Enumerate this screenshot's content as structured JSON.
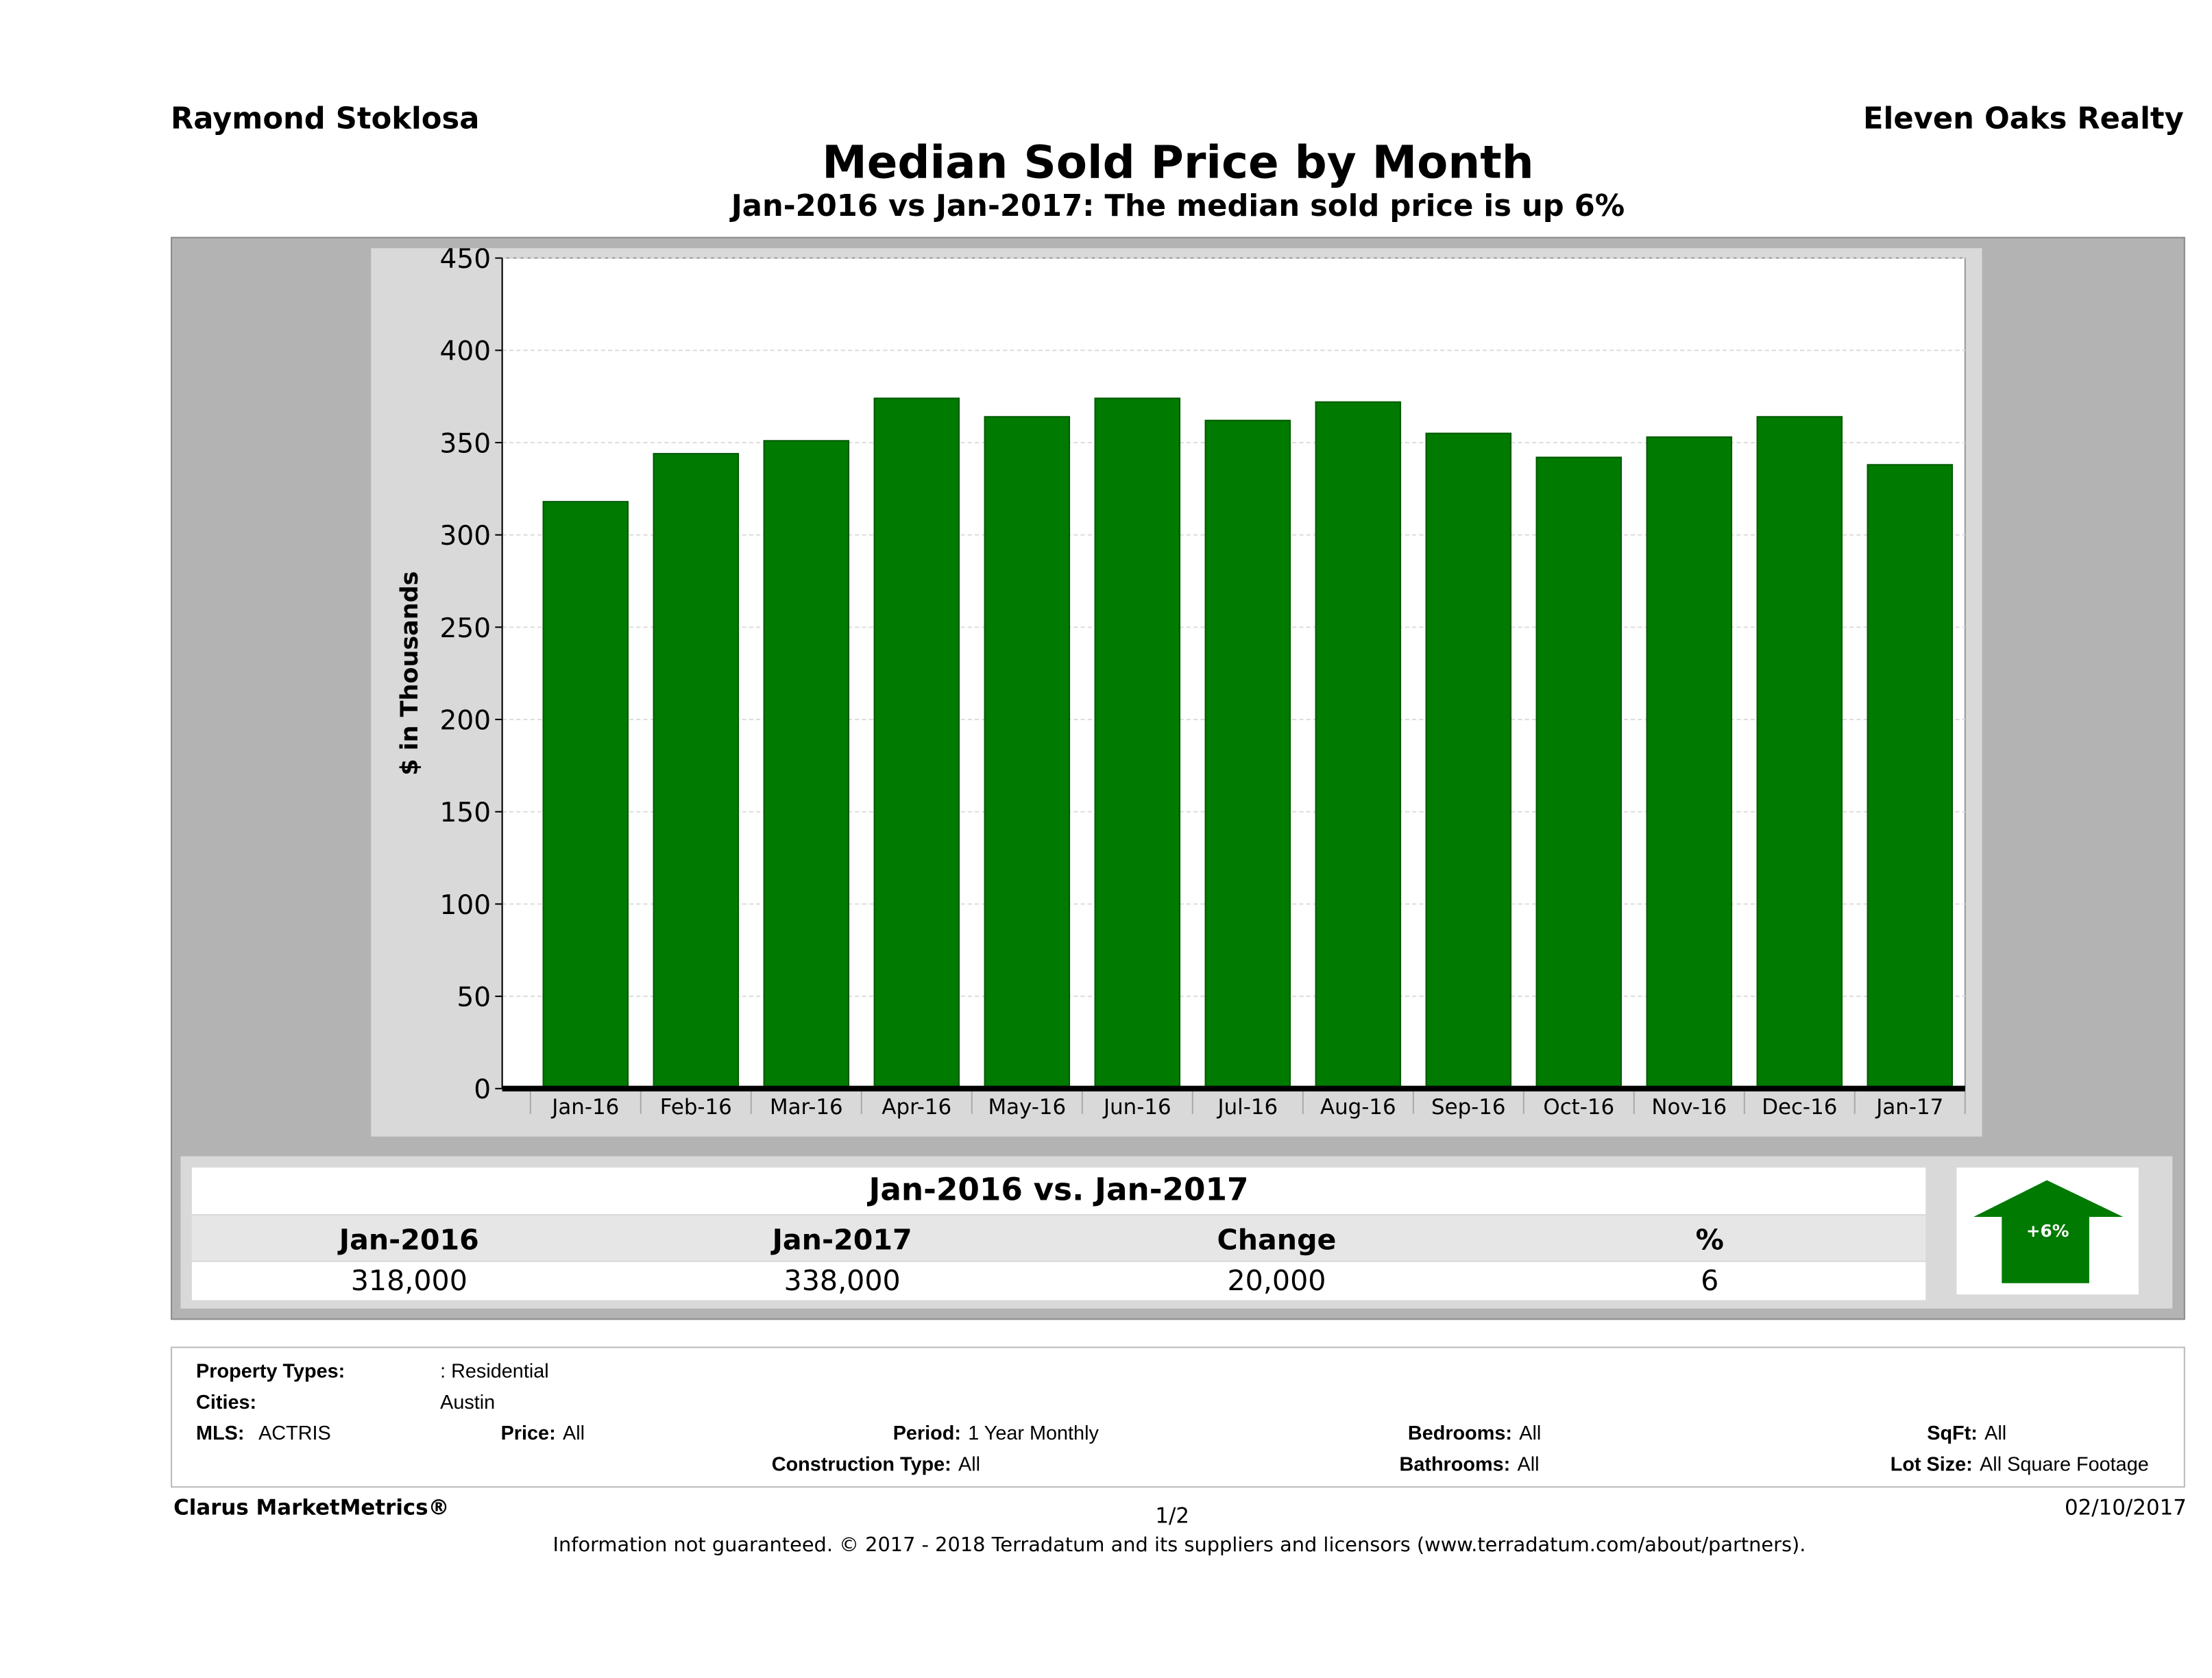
{
  "header": {
    "agent": "Raymond Stoklosa",
    "brokerage": "Eleven Oaks Realty"
  },
  "chart_data": {
    "type": "bar",
    "title": "Median Sold Price by Month",
    "subtitle": "Jan-2016 vs Jan-2017: The median sold price is up 6%",
    "ylabel": "$ in Thousands",
    "xlabel": "",
    "ylim": [
      0,
      450
    ],
    "yticks": [
      0,
      50,
      100,
      150,
      200,
      250,
      300,
      350,
      400,
      450
    ],
    "grid": true,
    "bar_color": "#007a00",
    "categories": [
      "Jan-16",
      "Feb-16",
      "Mar-16",
      "Apr-16",
      "May-16",
      "Jun-16",
      "Jul-16",
      "Aug-16",
      "Sep-16",
      "Oct-16",
      "Nov-16",
      "Dec-16",
      "Jan-17"
    ],
    "values": [
      318,
      344,
      351,
      374,
      364,
      374,
      362,
      372,
      355,
      342,
      353,
      364,
      338
    ]
  },
  "comparison": {
    "title": "Jan-2016 vs. Jan-2017",
    "headers": [
      "Jan-2016",
      "Jan-2017",
      "Change",
      "%"
    ],
    "values": [
      "318,000",
      "338,000",
      "20,000",
      "6"
    ],
    "badge": "+6%",
    "badge_icon": "up-arrow-icon",
    "badge_color": "#007a00"
  },
  "filters": {
    "property_types_label": "Property Types:",
    "property_types": ": Residential",
    "cities_label": "Cities:",
    "cities": "Austin",
    "mls_label": "MLS:",
    "mls": "ACTRIS",
    "price_label": "Price:",
    "price": "All",
    "period_label": "Period:",
    "period": "1 Year Monthly",
    "bedrooms_label": "Bedrooms:",
    "bedrooms": "All",
    "sqft_label": "SqFt:",
    "sqft": "All",
    "construction_label": "Construction Type:",
    "construction": "All",
    "bathrooms_label": "Bathrooms:",
    "bathrooms": "All",
    "lot_label": "Lot Size:",
    "lot": "All Square Footage"
  },
  "footer": {
    "brand": "Clarus MarketMetrics®",
    "page": "1/2",
    "date": "02/10/2017",
    "disclaimer": "Information not guaranteed. © 2017 - 2018 Terradatum and its suppliers and licensors (www.terradatum.com/about/partners)."
  }
}
